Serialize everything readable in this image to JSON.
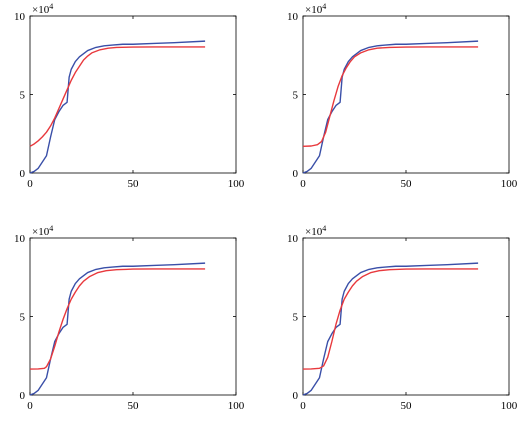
{
  "figure": {
    "panels": [
      {
        "exponent_base": "×10",
        "exponent_power": "4"
      },
      {
        "exponent_base": "×10",
        "exponent_power": "4"
      },
      {
        "exponent_base": "×10",
        "exponent_power": "4"
      },
      {
        "exponent_base": "×10",
        "exponent_power": "4"
      }
    ]
  },
  "chart_data": [
    {
      "type": "line",
      "title": "",
      "xlabel": "",
      "ylabel": "",
      "xlim": [
        0,
        100
      ],
      "ylim": [
        0,
        10
      ],
      "xticks": [
        0,
        50,
        100
      ],
      "yticks": [
        0,
        5,
        10
      ],
      "xtick_labels": [
        "0",
        "50",
        "100"
      ],
      "ytick_labels": [
        "0",
        "5",
        "10"
      ],
      "y_multiplier": "×10^4",
      "grid": false,
      "series": [
        {
          "color": "#3a4fa8",
          "points": [
            [
              0,
              0
            ],
            [
              2,
              0.1
            ],
            [
              4,
              0.3
            ],
            [
              6,
              0.7
            ],
            [
              8,
              1.1
            ],
            [
              10,
              2.3
            ],
            [
              12,
              3.4
            ],
            [
              14,
              3.9
            ],
            [
              16,
              4.3
            ],
            [
              18,
              4.5
            ],
            [
              19,
              6.1
            ],
            [
              20,
              6.6
            ],
            [
              22,
              7.1
            ],
            [
              24,
              7.4
            ],
            [
              28,
              7.8
            ],
            [
              32,
              8.0
            ],
            [
              36,
              8.1
            ],
            [
              40,
              8.15
            ],
            [
              45,
              8.2
            ],
            [
              50,
              8.2
            ],
            [
              60,
              8.25
            ],
            [
              70,
              8.3
            ],
            [
              85,
              8.4
            ]
          ]
        },
        {
          "color": "#e8393d",
          "points": [
            [
              0,
              1.7
            ],
            [
              2,
              1.85
            ],
            [
              4,
              2.05
            ],
            [
              6,
              2.3
            ],
            [
              8,
              2.6
            ],
            [
              10,
              3.0
            ],
            [
              12,
              3.5
            ],
            [
              14,
              4.1
            ],
            [
              16,
              4.7
            ],
            [
              18,
              5.3
            ],
            [
              20,
              5.9
            ],
            [
              22,
              6.4
            ],
            [
              24,
              6.8
            ],
            [
              26,
              7.2
            ],
            [
              28,
              7.45
            ],
            [
              30,
              7.65
            ],
            [
              34,
              7.85
            ],
            [
              38,
              7.95
            ],
            [
              42,
              8.0
            ],
            [
              50,
              8.02
            ],
            [
              60,
              8.03
            ],
            [
              70,
              8.03
            ],
            [
              85,
              8.03
            ]
          ]
        }
      ]
    },
    {
      "type": "line",
      "title": "",
      "xlabel": "",
      "ylabel": "",
      "xlim": [
        0,
        100
      ],
      "ylim": [
        0,
        10
      ],
      "xticks": [
        0,
        50,
        100
      ],
      "yticks": [
        0,
        5,
        10
      ],
      "xtick_labels": [
        "0",
        "50",
        "100"
      ],
      "ytick_labels": [
        "0",
        "5",
        "10"
      ],
      "y_multiplier": "×10^4",
      "grid": false,
      "series": [
        {
          "color": "#3a4fa8",
          "points": [
            [
              0,
              0
            ],
            [
              2,
              0.1
            ],
            [
              4,
              0.3
            ],
            [
              6,
              0.7
            ],
            [
              8,
              1.1
            ],
            [
              10,
              2.3
            ],
            [
              12,
              3.4
            ],
            [
              14,
              3.9
            ],
            [
              16,
              4.3
            ],
            [
              18,
              4.5
            ],
            [
              19,
              6.1
            ],
            [
              20,
              6.6
            ],
            [
              22,
              7.1
            ],
            [
              24,
              7.4
            ],
            [
              28,
              7.8
            ],
            [
              32,
              8.0
            ],
            [
              36,
              8.1
            ],
            [
              40,
              8.15
            ],
            [
              45,
              8.2
            ],
            [
              50,
              8.2
            ],
            [
              60,
              8.25
            ],
            [
              70,
              8.3
            ],
            [
              85,
              8.4
            ]
          ]
        },
        {
          "color": "#e8393d",
          "points": [
            [
              0,
              1.7
            ],
            [
              4,
              1.72
            ],
            [
              7,
              1.8
            ],
            [
              9,
              2.0
            ],
            [
              11,
              2.6
            ],
            [
              13,
              3.6
            ],
            [
              15,
              4.6
            ],
            [
              17,
              5.5
            ],
            [
              19,
              6.2
            ],
            [
              21,
              6.7
            ],
            [
              23,
              7.1
            ],
            [
              25,
              7.4
            ],
            [
              28,
              7.65
            ],
            [
              32,
              7.85
            ],
            [
              36,
              7.95
            ],
            [
              42,
              8.0
            ],
            [
              50,
              8.02
            ],
            [
              60,
              8.03
            ],
            [
              70,
              8.03
            ],
            [
              85,
              8.03
            ]
          ]
        }
      ]
    },
    {
      "type": "line",
      "title": "",
      "xlabel": "",
      "ylabel": "",
      "xlim": [
        0,
        100
      ],
      "ylim": [
        0,
        10
      ],
      "xticks": [
        0,
        50,
        100
      ],
      "yticks": [
        0,
        5,
        10
      ],
      "xtick_labels": [
        "0",
        "50",
        "100"
      ],
      "ytick_labels": [
        "0",
        "5",
        "10"
      ],
      "y_multiplier": "×10^4",
      "grid": false,
      "series": [
        {
          "color": "#3a4fa8",
          "points": [
            [
              0,
              0
            ],
            [
              2,
              0.1
            ],
            [
              4,
              0.3
            ],
            [
              6,
              0.7
            ],
            [
              8,
              1.1
            ],
            [
              10,
              2.3
            ],
            [
              12,
              3.4
            ],
            [
              14,
              3.9
            ],
            [
              16,
              4.3
            ],
            [
              18,
              4.5
            ],
            [
              19,
              6.1
            ],
            [
              20,
              6.6
            ],
            [
              22,
              7.1
            ],
            [
              24,
              7.4
            ],
            [
              28,
              7.8
            ],
            [
              32,
              8.0
            ],
            [
              36,
              8.1
            ],
            [
              40,
              8.15
            ],
            [
              45,
              8.2
            ],
            [
              50,
              8.2
            ],
            [
              60,
              8.25
            ],
            [
              70,
              8.3
            ],
            [
              85,
              8.4
            ]
          ]
        },
        {
          "color": "#e8393d",
          "points": [
            [
              0,
              1.65
            ],
            [
              4,
              1.66
            ],
            [
              7,
              1.7
            ],
            [
              8,
              1.8
            ],
            [
              10,
              2.3
            ],
            [
              12,
              3.1
            ],
            [
              14,
              4.0
            ],
            [
              16,
              4.8
            ],
            [
              18,
              5.5
            ],
            [
              20,
              6.1
            ],
            [
              22,
              6.55
            ],
            [
              24,
              6.95
            ],
            [
              26,
              7.25
            ],
            [
              29,
              7.55
            ],
            [
              33,
              7.8
            ],
            [
              37,
              7.92
            ],
            [
              42,
              7.98
            ],
            [
              50,
              8.02
            ],
            [
              60,
              8.03
            ],
            [
              70,
              8.03
            ],
            [
              85,
              8.03
            ]
          ]
        }
      ]
    },
    {
      "type": "line",
      "title": "",
      "xlabel": "",
      "ylabel": "",
      "xlim": [
        0,
        100
      ],
      "ylim": [
        0,
        10
      ],
      "xticks": [
        0,
        50,
        100
      ],
      "yticks": [
        0,
        5,
        10
      ],
      "xtick_labels": [
        "0",
        "50",
        "100"
      ],
      "ytick_labels": [
        "0",
        "5",
        "10"
      ],
      "y_multiplier": "×10^4",
      "grid": false,
      "series": [
        {
          "color": "#3a4fa8",
          "points": [
            [
              0,
              0
            ],
            [
              2,
              0.1
            ],
            [
              4,
              0.3
            ],
            [
              6,
              0.7
            ],
            [
              8,
              1.1
            ],
            [
              10,
              2.3
            ],
            [
              12,
              3.4
            ],
            [
              14,
              3.9
            ],
            [
              16,
              4.3
            ],
            [
              18,
              4.5
            ],
            [
              19,
              6.1
            ],
            [
              20,
              6.6
            ],
            [
              22,
              7.1
            ],
            [
              24,
              7.4
            ],
            [
              28,
              7.8
            ],
            [
              32,
              8.0
            ],
            [
              36,
              8.1
            ],
            [
              40,
              8.15
            ],
            [
              45,
              8.2
            ],
            [
              50,
              8.2
            ],
            [
              60,
              8.25
            ],
            [
              70,
              8.3
            ],
            [
              85,
              8.4
            ]
          ]
        },
        {
          "color": "#e8393d",
          "points": [
            [
              0,
              1.65
            ],
            [
              4,
              1.66
            ],
            [
              8,
              1.7
            ],
            [
              10,
              1.85
            ],
            [
              12,
              2.4
            ],
            [
              14,
              3.4
            ],
            [
              16,
              4.5
            ],
            [
              18,
              5.4
            ],
            [
              20,
              6.1
            ],
            [
              22,
              6.55
            ],
            [
              24,
              6.95
            ],
            [
              26,
              7.25
            ],
            [
              29,
              7.55
            ],
            [
              33,
              7.8
            ],
            [
              37,
              7.92
            ],
            [
              42,
              7.98
            ],
            [
              50,
              8.02
            ],
            [
              60,
              8.03
            ],
            [
              70,
              8.03
            ],
            [
              85,
              8.03
            ]
          ]
        }
      ]
    }
  ]
}
